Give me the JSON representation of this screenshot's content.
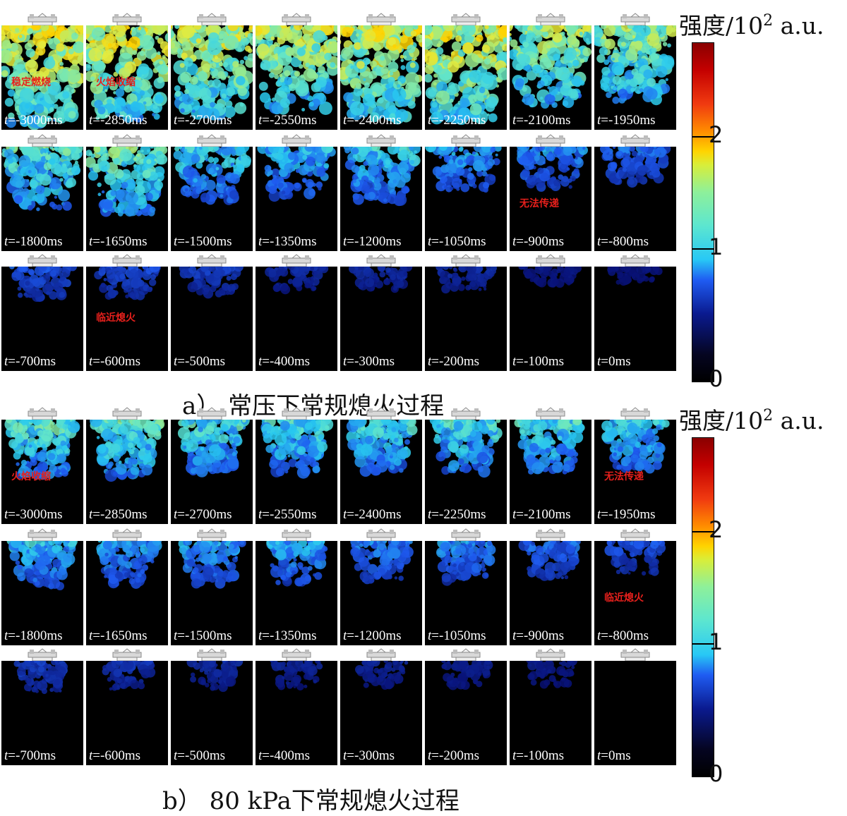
{
  "colorbar": {
    "title": "强度/10",
    "title_sup": "2",
    "title_unit": "a.u.",
    "ticks": [
      "2",
      "1",
      "0"
    ]
  },
  "panels": [
    {
      "caption": "a） 常压下常规熄火过程",
      "rows": [
        [
          "-3000ms",
          "-2850ms",
          "-2700ms",
          "-2550ms",
          "-2400ms",
          "-2250ms",
          "-2100ms",
          "-1950ms"
        ],
        [
          "-1800ms",
          "-1650ms",
          "-1500ms",
          "-1350ms",
          "-1200ms",
          "-1050ms",
          "-900ms",
          "-800ms"
        ],
        [
          "-700ms",
          "-600ms",
          "-500ms",
          "-400ms",
          "-300ms",
          "-200ms",
          "-100ms",
          "0ms"
        ]
      ],
      "intensity": [
        [
          0.95,
          0.9,
          0.85,
          0.8,
          0.9,
          0.9,
          0.75,
          0.7
        ],
        [
          0.55,
          0.6,
          0.45,
          0.4,
          0.45,
          0.35,
          0.3,
          0.25
        ],
        [
          0.2,
          0.18,
          0.15,
          0.1,
          0.1,
          0.1,
          0.05,
          0.03
        ]
      ],
      "annotations": [
        {
          "text": "稳定燃烧",
          "row": 0,
          "col": 0
        },
        {
          "text": "火焰收缩",
          "row": 0,
          "col": 1
        },
        {
          "text": "无法传递",
          "row": 1,
          "col": 6
        },
        {
          "text": "临近熄火",
          "row": 2,
          "col": 1
        }
      ]
    },
    {
      "caption": "b） 80 kPa下常规熄火过程",
      "rows": [
        [
          "-3000ms",
          "-2850ms",
          "-2700ms",
          "-2550ms",
          "-2400ms",
          "-2250ms",
          "-2100ms",
          "-1950ms"
        ],
        [
          "-1800ms",
          "-1650ms",
          "-1500ms",
          "-1350ms",
          "-1200ms",
          "-1050ms",
          "-900ms",
          "-800ms"
        ],
        [
          "-700ms",
          "-600ms",
          "-500ms",
          "-400ms",
          "-300ms",
          "-200ms",
          "-100ms",
          "0ms"
        ]
      ],
      "intensity": [
        [
          0.55,
          0.55,
          0.5,
          0.5,
          0.5,
          0.5,
          0.5,
          0.45
        ],
        [
          0.4,
          0.35,
          0.35,
          0.35,
          0.3,
          0.3,
          0.25,
          0.2
        ],
        [
          0.15,
          0.12,
          0.1,
          0.08,
          0.08,
          0.06,
          0.05,
          0.0
        ]
      ],
      "annotations": [
        {
          "text": "火焰收缩",
          "row": 0,
          "col": 0
        },
        {
          "text": "无法传递",
          "row": 0,
          "col": 7
        },
        {
          "text": "临近熄火",
          "row": 1,
          "col": 7
        }
      ]
    }
  ],
  "time_prefix": "t=",
  "colors": {
    "annotation": "#e8201c",
    "frame_bg": "#000000"
  }
}
